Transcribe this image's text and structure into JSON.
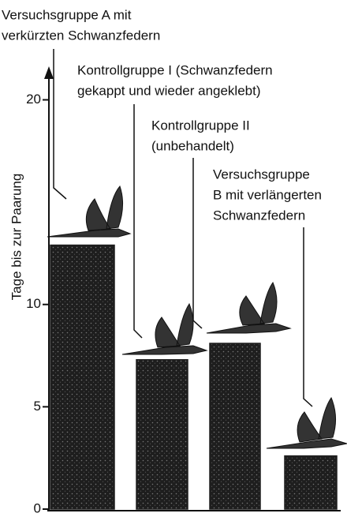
{
  "chart_data": {
    "type": "bar",
    "y_label": "Tage bis zur Paarung",
    "categories": [
      [
        "Versuchsgruppe A mit",
        "verkürzten Schwanzfedern"
      ],
      [
        "Kontrollgruppe I (Schwanzfedern",
        "gekappt und wieder angeklebt)"
      ],
      [
        "Kontrollgruppe II",
        "(unbehandelt)"
      ],
      [
        "Versuchsgruppe",
        "B mit verlängerten",
        "Schwanzfedern"
      ]
    ],
    "values": [
      12.9,
      7.3,
      8.1,
      2.6
    ],
    "color": "#1e1e1e",
    "ylim": [
      0,
      21.6
    ],
    "yticks": [
      0,
      5,
      10,
      20
    ]
  }
}
